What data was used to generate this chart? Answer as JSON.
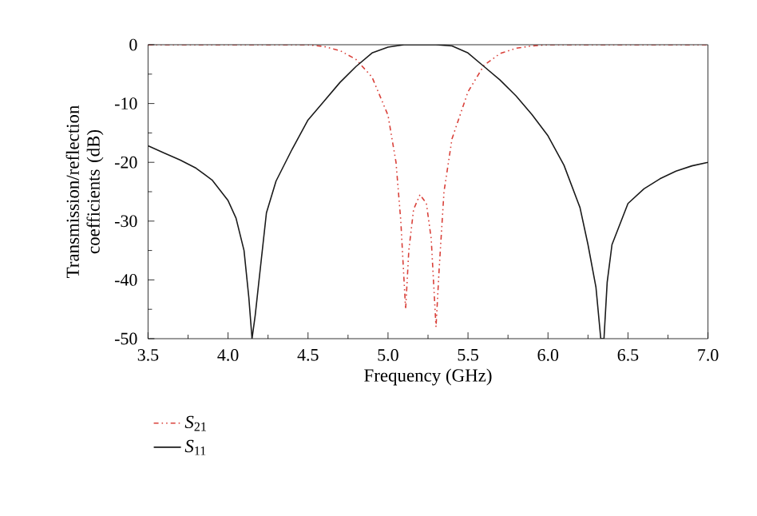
{
  "chart_data": {
    "type": "line",
    "xlabel": "Frequency (GHz)",
    "ylabel": "Transmission/reflection coefficients (dB)",
    "xlim": [
      3.5,
      7.0
    ],
    "ylim": [
      -50,
      0
    ],
    "xticks": [
      {
        "value": 3.5,
        "label": "3.5"
      },
      {
        "value": 4.0,
        "label": "4.0"
      },
      {
        "value": 4.5,
        "label": "4.5"
      },
      {
        "value": 5.0,
        "label": "5.0"
      },
      {
        "value": 5.5,
        "label": "5.5"
      },
      {
        "value": 6.0,
        "label": "6.0"
      },
      {
        "value": 6.5,
        "label": "6.5"
      },
      {
        "value": 7.0,
        "label": "7.0"
      }
    ],
    "yticks": [
      0,
      -10,
      -20,
      -30,
      -40,
      -50
    ],
    "legend": "bottom left",
    "marker": "none",
    "grid": false,
    "series": [
      {
        "name": "*S*$_{21}$",
        "color": "#d9413a",
        "line_style": "dashdotdot",
        "x": [
          3.5,
          4.0,
          4.5,
          4.6,
          4.7,
          4.8,
          4.9,
          5.0,
          5.05,
          5.08,
          5.1,
          5.11,
          5.13,
          5.16,
          5.2,
          5.24,
          5.27,
          5.3,
          5.32,
          5.35,
          5.4,
          5.5,
          5.6,
          5.7,
          5.8,
          5.9,
          6.0,
          6.5,
          7.0
        ],
        "values": [
          0,
          0,
          0,
          -0.3,
          -1,
          -2.5,
          -5.5,
          -12,
          -20,
          -30,
          -40,
          -45,
          -35,
          -28,
          -25.5,
          -27,
          -33,
          -48,
          -38,
          -25,
          -16,
          -8,
          -3.5,
          -1.5,
          -0.6,
          -0.2,
          0,
          0,
          0
        ]
      },
      {
        "name": "*S*$_{11}$",
        "color": "#1a1a1a",
        "line_style": "solid",
        "x": [
          3.5,
          3.6,
          3.7,
          3.8,
          3.9,
          4.0,
          4.05,
          4.1,
          4.13,
          4.15,
          4.17,
          4.19,
          4.24,
          4.3,
          4.4,
          4.5,
          4.6,
          4.7,
          4.8,
          4.9,
          5.0,
          5.1,
          5.2,
          5.3,
          5.4,
          5.5,
          5.6,
          5.7,
          5.8,
          5.9,
          6.0,
          6.1,
          6.2,
          6.25,
          6.3,
          6.33,
          6.35,
          6.37,
          6.4,
          6.5,
          6.6,
          6.7,
          6.8,
          6.9,
          7.0
        ],
        "values": [
          -17.2,
          -18.4,
          -19.6,
          -21,
          -23,
          -26.5,
          -29.5,
          -35,
          -43,
          -50,
          -46,
          -41,
          -28.6,
          -23.2,
          -17.8,
          -12.8,
          -9.6,
          -6.4,
          -3.7,
          -1.4,
          -0.4,
          0,
          0,
          0,
          -0.2,
          -1.4,
          -3.7,
          -6,
          -8.7,
          -11.9,
          -15.5,
          -20.5,
          -27.7,
          -34,
          -41.3,
          -50,
          -50,
          -40.4,
          -34,
          -27,
          -24.5,
          -22.8,
          -21.5,
          -20.6,
          -20
        ]
      }
    ]
  }
}
